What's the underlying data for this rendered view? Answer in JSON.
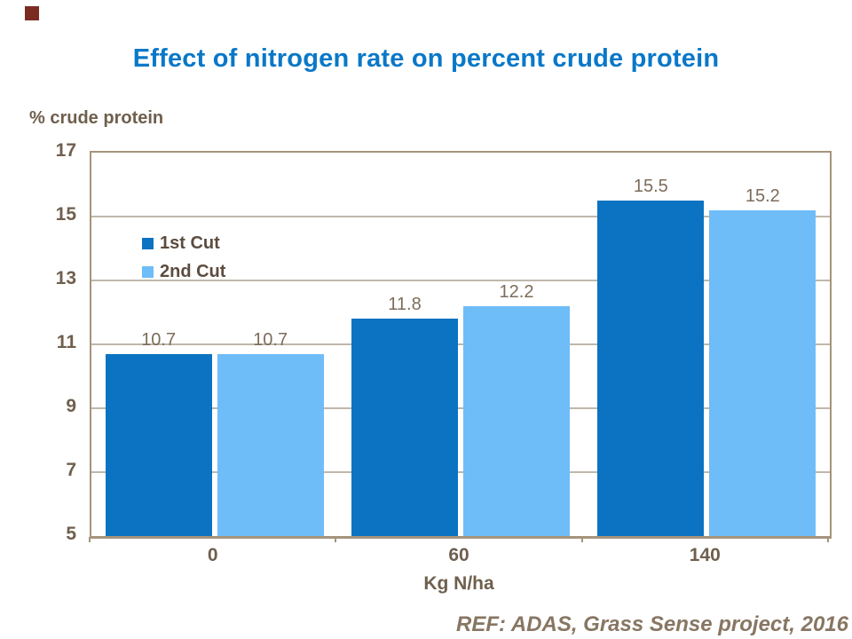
{
  "chart_data": {
    "type": "bar",
    "title": "Effect of nitrogen rate on percent crude protein",
    "ylabel": "% crude protein",
    "xlabel": "Kg N/ha",
    "categories": [
      "0",
      "60",
      "140"
    ],
    "series": [
      {
        "name": "1st Cut",
        "color": "#0b73c2",
        "values": [
          10.7,
          11.8,
          15.5
        ]
      },
      {
        "name": "2nd Cut",
        "color": "#6fbdf8",
        "values": [
          10.7,
          12.2,
          15.2
        ]
      }
    ],
    "ylim": [
      5,
      17
    ],
    "yticks": [
      5,
      7,
      9,
      11,
      13,
      15,
      17
    ],
    "grid": "horizontal",
    "legend_position": "inside-top-left",
    "data_labels": true
  },
  "footer": {
    "text": "REF: ADAS, Grass Sense project, 2016"
  },
  "colors": {
    "title": "#0978c8",
    "axis_text": "#6f5f4d",
    "data_label": "#7c6c5a",
    "legend_text": "#5c4c3f",
    "footer_text": "#877663",
    "plot_border": "#a5947c",
    "gridline": "#c0b7aa",
    "corner_marker": "#7b2c21"
  }
}
